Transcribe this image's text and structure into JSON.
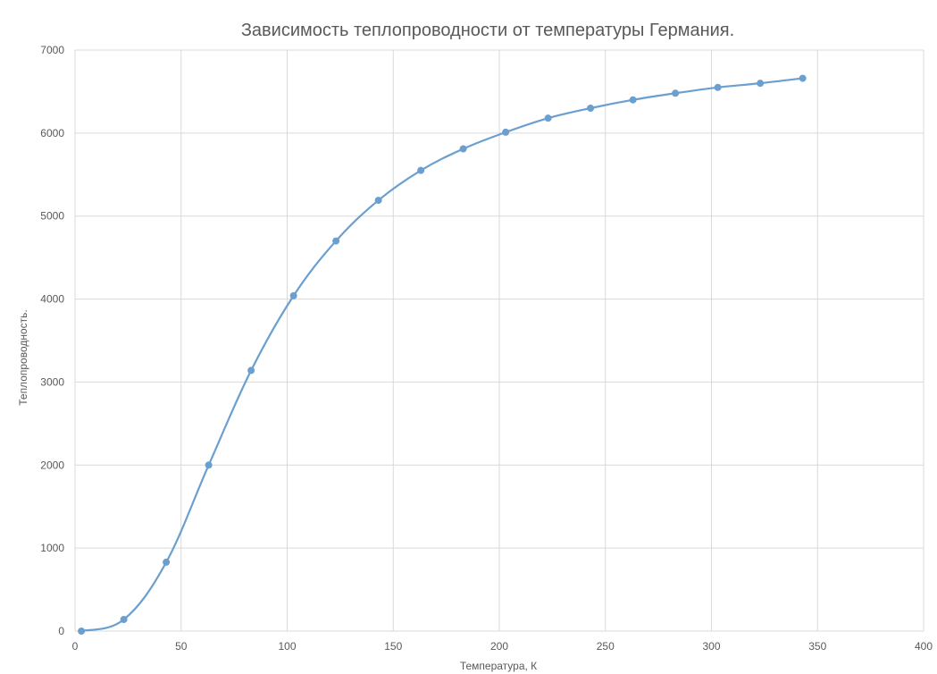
{
  "chart_data": {
    "type": "scatter",
    "title": "Зависимость теплопроводности от температуры Германия.",
    "xlabel": "Температура, К",
    "ylabel": "Теплопроводность.",
    "xlim": [
      0,
      400
    ],
    "ylim": [
      0,
      7000
    ],
    "x_ticks": [
      0,
      50,
      100,
      150,
      200,
      250,
      300,
      350,
      400
    ],
    "y_ticks": [
      0,
      1000,
      2000,
      3000,
      4000,
      5000,
      6000,
      7000
    ],
    "grid": true,
    "series": [
      {
        "color": "#6a9fcf",
        "line": "smooth",
        "points": [
          {
            "x": 3,
            "y": 0
          },
          {
            "x": 23,
            "y": 140
          },
          {
            "x": 43,
            "y": 830
          },
          {
            "x": 63,
            "y": 2000
          },
          {
            "x": 83,
            "y": 3140
          },
          {
            "x": 103,
            "y": 4040
          },
          {
            "x": 123,
            "y": 4700
          },
          {
            "x": 143,
            "y": 5190
          },
          {
            "x": 163,
            "y": 5550
          },
          {
            "x": 183,
            "y": 5810
          },
          {
            "x": 203,
            "y": 6010
          },
          {
            "x": 223,
            "y": 6180
          },
          {
            "x": 243,
            "y": 6300
          },
          {
            "x": 263,
            "y": 6400
          },
          {
            "x": 283,
            "y": 6480
          },
          {
            "x": 303,
            "y": 6550
          },
          {
            "x": 323,
            "y": 6600
          },
          {
            "x": 343,
            "y": 6660
          }
        ]
      }
    ]
  }
}
